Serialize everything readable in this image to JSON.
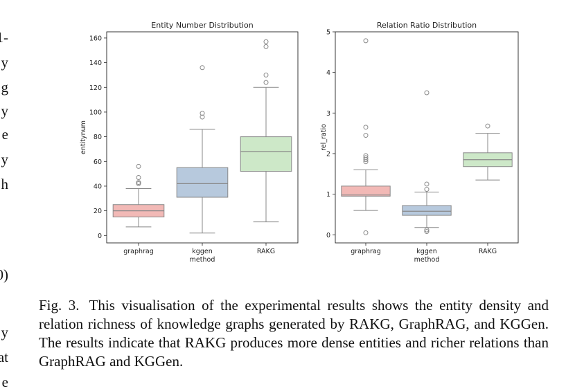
{
  "margin_fragments": [
    "1-",
    "y",
    "g",
    "y",
    "e",
    "y",
    "h",
    "0)",
    "y",
    "at",
    "e"
  ],
  "caption": {
    "label": "Fig. 3.",
    "text": "This visualisation of the experimental results shows the entity density and relation richness of knowledge graphs generated by RAKG, GraphRAG, and KGGen. The results indicate that RAKG produces more dense entities and richer relations than GraphRAG and KGGen."
  },
  "chart_data": [
    {
      "type": "box",
      "title": "Entity Number Distribution",
      "xlabel": "method",
      "ylabel": "entitynum",
      "ylim": [
        -6,
        165
      ],
      "yticks": [
        0,
        20,
        40,
        60,
        80,
        100,
        120,
        140,
        160
      ],
      "categories": [
        "graphrag",
        "kggen",
        "RAKG"
      ],
      "colors": [
        "#f2b9b6",
        "#b7c9dd",
        "#cde8c8"
      ],
      "boxes": [
        {
          "category": "graphrag",
          "whisker_low": 7,
          "q1": 15,
          "median": 20,
          "q3": 25,
          "whisker_high": 38,
          "outliers": [
            42,
            43,
            47,
            56
          ]
        },
        {
          "category": "kggen",
          "whisker_low": 2,
          "q1": 31,
          "median": 42,
          "q3": 55,
          "whisker_high": 86,
          "outliers": [
            96,
            99,
            136
          ]
        },
        {
          "category": "RAKG",
          "whisker_low": 11,
          "q1": 52,
          "median": 68,
          "q3": 80,
          "whisker_high": 120,
          "outliers": [
            124,
            130,
            153,
            157
          ]
        }
      ]
    },
    {
      "type": "box",
      "title": "Relation Ratio Distribution",
      "xlabel": "method",
      "ylabel": "rel_ratio",
      "ylim": [
        -0.2,
        5.0
      ],
      "yticks": [
        0,
        1,
        2,
        3,
        4,
        5
      ],
      "categories": [
        "graphrag",
        "kggen",
        "RAKG"
      ],
      "colors": [
        "#f2b9b6",
        "#b7c9dd",
        "#cde8c8"
      ],
      "boxes": [
        {
          "category": "graphrag",
          "whisker_low": 0.6,
          "q1": 0.95,
          "median": 0.98,
          "q3": 1.2,
          "whisker_high": 1.6,
          "outliers": [
            0.05,
            1.8,
            1.85,
            1.9,
            1.95,
            2.45,
            2.65,
            4.78
          ]
        },
        {
          "category": "kggen",
          "whisker_low": 0.18,
          "q1": 0.48,
          "median": 0.58,
          "q3": 0.72,
          "whisker_high": 1.05,
          "outliers": [
            0.08,
            0.12,
            1.12,
            1.25,
            3.5
          ]
        },
        {
          "category": "RAKG",
          "whisker_low": 1.35,
          "q1": 1.68,
          "median": 1.85,
          "q3": 2.02,
          "whisker_high": 2.5,
          "outliers": [
            2.68
          ]
        }
      ]
    }
  ]
}
